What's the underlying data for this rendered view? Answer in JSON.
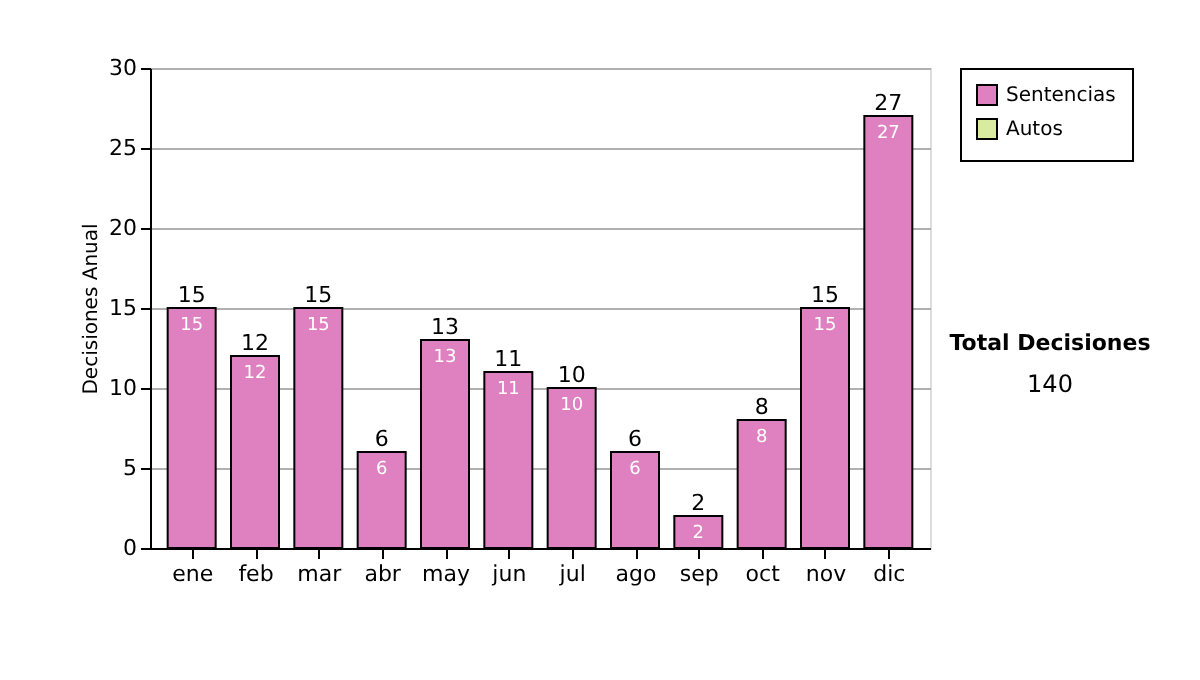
{
  "chart_data": {
    "type": "bar",
    "stacked": true,
    "ylabel": "Decisiones Anual",
    "categories": [
      "ene",
      "feb",
      "mar",
      "abr",
      "may",
      "jun",
      "jul",
      "ago",
      "sep",
      "oct",
      "nov",
      "dic"
    ],
    "series": [
      {
        "name": "Sentencias",
        "color": "#df80c0",
        "values": [
          15,
          12,
          15,
          6,
          13,
          11,
          10,
          6,
          2,
          8,
          15,
          27
        ]
      },
      {
        "name": "Autos",
        "color": "#d8eba0",
        "values": [
          null,
          null,
          null,
          null,
          null,
          null,
          null,
          null,
          null,
          null,
          null,
          null
        ]
      }
    ],
    "data_labels": true,
    "totals": [
      "15",
      "12",
      "15",
      "6",
      "13",
      "11",
      "10",
      "6",
      "2",
      "8",
      "15",
      "27"
    ],
    "ylim": [
      0,
      30
    ],
    "yticks": [
      0,
      5,
      10,
      15,
      20,
      25,
      30
    ],
    "grid": "y",
    "legend": "right",
    "annotations": [
      "Total Decisiones",
      "140"
    ]
  }
}
